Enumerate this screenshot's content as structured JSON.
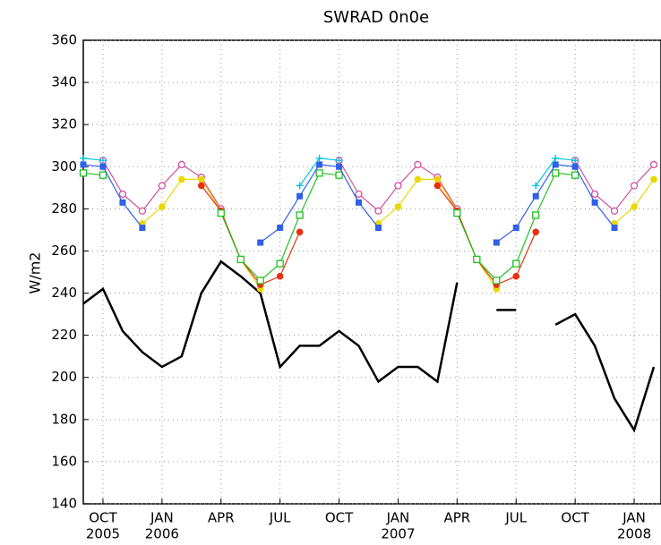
{
  "chart_data": {
    "type": "line",
    "title": "SWRAD 0n0e",
    "y_label": "W/m2",
    "x": [
      "2005-09",
      "2005-10",
      "2005-11",
      "2005-12",
      "2006-01",
      "2006-02",
      "2006-03",
      "2006-04",
      "2006-05",
      "2006-06",
      "2006-07",
      "2006-08",
      "2006-09",
      "2006-10",
      "2006-11",
      "2006-12",
      "2007-01",
      "2007-02",
      "2007-03",
      "2007-04",
      "2007-05",
      "2007-06",
      "2007-07",
      "2007-08",
      "2007-09",
      "2007-10",
      "2007-11",
      "2007-12",
      "2008-01",
      "2008-02"
    ],
    "xlim": [
      "2005-09",
      "2008-02"
    ],
    "xticks": [
      {
        "value": "2005-10",
        "label": "OCT",
        "year": "2005"
      },
      {
        "value": "2006-01",
        "label": "JAN",
        "year": "2006"
      },
      {
        "value": "2006-04",
        "label": "APR"
      },
      {
        "value": "2006-07",
        "label": "JUL"
      },
      {
        "value": "2006-10",
        "label": "OCT"
      },
      {
        "value": "2007-01",
        "label": "JAN",
        "year": "2007"
      },
      {
        "value": "2007-04",
        "label": "APR"
      },
      {
        "value": "2007-07",
        "label": "JUL"
      },
      {
        "value": "2007-10",
        "label": "OCT"
      },
      {
        "value": "2008-01",
        "label": "JAN",
        "year": "2008"
      }
    ],
    "ylim": [
      140,
      360
    ],
    "yticks": [
      140,
      160,
      180,
      200,
      220,
      240,
      260,
      280,
      300,
      320,
      340,
      360
    ],
    "grid": true,
    "series": [
      {
        "color": "#000000",
        "marker": "none",
        "values": [
          235,
          242,
          222,
          212,
          205,
          210,
          240,
          255,
          248,
          240,
          205,
          215,
          215,
          222,
          215,
          198,
          205,
          205,
          198,
          245,
          null,
          232,
          232,
          null,
          225,
          230,
          215,
          190,
          175,
          205
        ]
      },
      {
        "color": "#d050a0",
        "marker": "circle-open",
        "values": [
          null,
          303,
          287,
          279,
          291,
          301,
          295,
          280,
          null,
          null,
          null,
          null,
          null,
          303,
          287,
          279,
          291,
          301,
          295,
          280,
          null,
          null,
          null,
          null,
          null,
          303,
          287,
          279,
          291,
          301
        ]
      },
      {
        "color": "#e8d800",
        "marker": "circle-filled",
        "values": [
          null,
          null,
          null,
          273,
          281,
          294,
          294,
          279,
          256,
          242,
          null,
          null,
          null,
          null,
          null,
          273,
          281,
          294,
          294,
          279,
          256,
          242,
          null,
          null,
          null,
          null,
          null,
          273,
          281,
          294
        ]
      },
      {
        "color": "#e83010",
        "marker": "circle-filled",
        "values": [
          null,
          null,
          null,
          null,
          null,
          null,
          291,
          279,
          256,
          244,
          248,
          269,
          null,
          null,
          null,
          null,
          null,
          null,
          291,
          279,
          256,
          244,
          248,
          269,
          null,
          null,
          null,
          null,
          null,
          null
        ]
      },
      {
        "color": "#20c020",
        "marker": "square-open",
        "values": [
          297,
          296,
          null,
          null,
          null,
          null,
          null,
          278,
          256,
          246,
          254,
          277,
          297,
          296,
          null,
          null,
          null,
          null,
          null,
          278,
          256,
          246,
          254,
          277,
          297,
          296,
          null,
          null,
          null,
          null
        ]
      },
      {
        "color": "#3060e8",
        "marker": "square-filled",
        "values": [
          301,
          300,
          283,
          271,
          null,
          null,
          null,
          null,
          null,
          264,
          271,
          286,
          301,
          300,
          283,
          271,
          null,
          null,
          null,
          null,
          null,
          264,
          271,
          286,
          301,
          300,
          283,
          271,
          null,
          null
        ]
      },
      {
        "color": "#00c8e0",
        "marker": "plus",
        "values": [
          304,
          303,
          null,
          null,
          null,
          null,
          null,
          null,
          null,
          null,
          null,
          291,
          304,
          303,
          null,
          null,
          null,
          null,
          null,
          null,
          null,
          null,
          null,
          291,
          304,
          303,
          null,
          null,
          null,
          null
        ]
      }
    ]
  }
}
